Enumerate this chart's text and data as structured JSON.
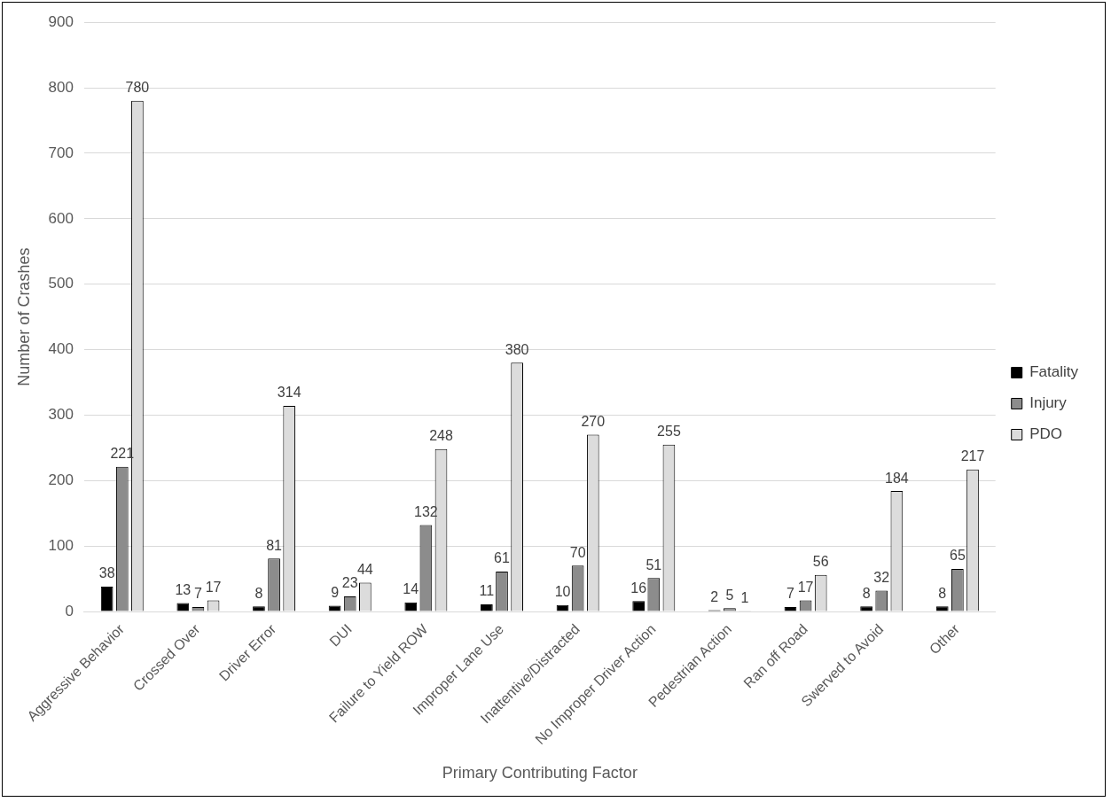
{
  "chart_data": {
    "type": "bar",
    "xlabel": "Primary Contributing Factor",
    "ylabel": "Number of Crashes",
    "categories": [
      "Aggressive Behavior",
      "Crossed Over",
      "Driver Error",
      "DUI",
      "Failure to Yield ROW",
      "Improper Lane Use",
      "Inattentive/Distracted",
      "No Improper Driver Action",
      "Pedestrian Action",
      "Ran off Road",
      "Swerved to Avoid",
      "Other"
    ],
    "series": [
      {
        "name": "Fatality",
        "color": "#000000",
        "values": [
          38,
          13,
          8,
          9,
          14,
          11,
          10,
          16,
          2,
          7,
          8,
          8
        ]
      },
      {
        "name": "Injury",
        "color": "#8c8c8c",
        "values": [
          221,
          7,
          81,
          23,
          132,
          61,
          70,
          51,
          5,
          17,
          32,
          65
        ]
      },
      {
        "name": "PDO",
        "color": "#dcdcdc",
        "values": [
          780,
          17,
          314,
          44,
          248,
          380,
          270,
          255,
          1,
          56,
          184,
          217
        ]
      }
    ],
    "ylim": [
      0,
      900
    ],
    "yticks": [
      0,
      100,
      200,
      300,
      400,
      500,
      600,
      700,
      800,
      900
    ],
    "grid": "y",
    "legend": "right",
    "data_labels": true
  }
}
